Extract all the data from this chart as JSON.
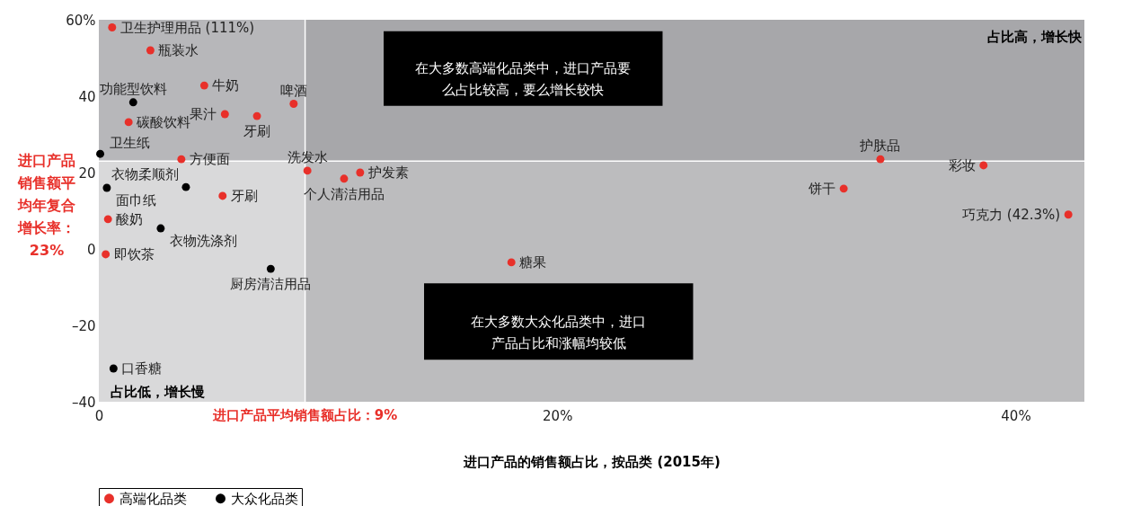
{
  "chart_data": {
    "type": "scatter",
    "xlabel": "进口产品的销售额占比，按品类 (2015年)",
    "xlim": [
      0,
      43
    ],
    "ylim": [
      -40,
      60
    ],
    "xticks": [
      0,
      {
        "value": 20,
        "label": "20%"
      },
      {
        "value": 40,
        "label": "40%"
      }
    ],
    "yticks": [
      {
        "value": -40,
        "label": "–40"
      },
      {
        "value": -20,
        "label": "–20"
      },
      0,
      20,
      40,
      {
        "value": 60,
        "label": "60%"
      }
    ],
    "grid": false,
    "legend": "bottom",
    "marker": "circle",
    "series": [
      {
        "name": "高端化品类",
        "color": "#e8302a",
        "x": [
          0.58,
          2.25,
          4.6,
          8.5,
          5.5,
          6.9,
          1.3,
          3.6,
          9.1,
          10.7,
          11.4,
          5.4,
          0.4,
          0.3,
          18.0,
          34.1,
          38.6,
          32.5,
          42.3
        ],
        "values": [
          58,
          52,
          42.8,
          38,
          35.3,
          34.8,
          33.2,
          23.5,
          20.5,
          18.4,
          20,
          13.9,
          7.8,
          -1.4,
          -3.5,
          23.5,
          21.9,
          15.8,
          9
        ]
      },
      {
        "name": "大众化品类",
        "color": "#000000",
        "x": [
          1.5,
          0.06,
          3.8,
          0.35,
          2.7,
          7.5,
          0.64
        ],
        "values": [
          38.4,
          24.9,
          16.2,
          16,
          5.4,
          -5.2,
          -31.3
        ]
      }
    ],
    "ref_lines": [
      {
        "axis": "x",
        "value": 9,
        "label": "进口产品平均销售额占比：9%",
        "color": "#ffffff"
      },
      {
        "axis": "y",
        "value": 23,
        "label": "进口产品销售额平均年复合增长率：23%",
        "color": "#ffffff"
      }
    ],
    "bands": [
      {
        "axis": "x",
        "from": 9,
        "to": 43,
        "color": "#bcbcbe"
      },
      {
        "axis": "y",
        "from": 23,
        "to": 60,
        "color": "#8f8f92"
      }
    ],
    "annotations": [
      "在大多数高端化品类中，进口产品要么占比较高，要么增长较快",
      "在大多数大众化品类中，进口产品占比和涨幅均较低",
      "占比高，增长快",
      "占比低，增长慢",
      {
        "text": "卫生护理用品 (111%)",
        "x": 0.58,
        "y": 58
      },
      {
        "text": "瓶装水",
        "x": 2.25,
        "y": 52
      },
      {
        "text": "牛奶",
        "x": 4.6,
        "y": 42.8
      },
      {
        "text": "啤酒",
        "x": 8.5,
        "y": 38
      },
      {
        "text": "果汁",
        "x": 5.5,
        "y": 35.3
      },
      {
        "text": "牙刷",
        "x": 6.9,
        "y": 34.8
      },
      {
        "text": "碳酸饮料",
        "x": 1.3,
        "y": 33.2
      },
      {
        "text": "方便面",
        "x": 3.6,
        "y": 23.5
      },
      {
        "text": "洗发水",
        "x": 9.1,
        "y": 20.5
      },
      {
        "text": "个人清洁用品",
        "x": 10.7,
        "y": 18.4
      },
      {
        "text": "护发素",
        "x": 11.4,
        "y": 20
      },
      {
        "text": "牙刷",
        "x": 5.4,
        "y": 13.9
      },
      {
        "text": "酸奶",
        "x": 0.4,
        "y": 7.8
      },
      {
        "text": "即饮茶",
        "x": 0.3,
        "y": -1.4
      },
      {
        "text": "糖果",
        "x": 18.0,
        "y": -3.5
      },
      {
        "text": "护肤品",
        "x": 34.1,
        "y": 23.5
      },
      {
        "text": "彩妆",
        "x": 38.6,
        "y": 21.9
      },
      {
        "text": "饼干",
        "x": 32.5,
        "y": 15.8
      },
      {
        "text": "巧克力 (42.3%)",
        "x": 42.3,
        "y": 9
      },
      {
        "text": "功能型饮料",
        "x": 1.5,
        "y": 38.4
      },
      {
        "text": "卫生纸",
        "x": 0.06,
        "y": 24.9
      },
      {
        "text": "衣物柔顺剂",
        "x": 3.8,
        "y": 16.2
      },
      {
        "text": "面巾纸",
        "x": 0.35,
        "y": 16
      },
      {
        "text": "衣物洗涤剂",
        "x": 2.7,
        "y": 5.4
      },
      {
        "text": "厨房清洁用品",
        "x": 7.5,
        "y": -5.2
      },
      {
        "text": "口香糖",
        "x": 0.64,
        "y": -31.3
      }
    ]
  }
}
